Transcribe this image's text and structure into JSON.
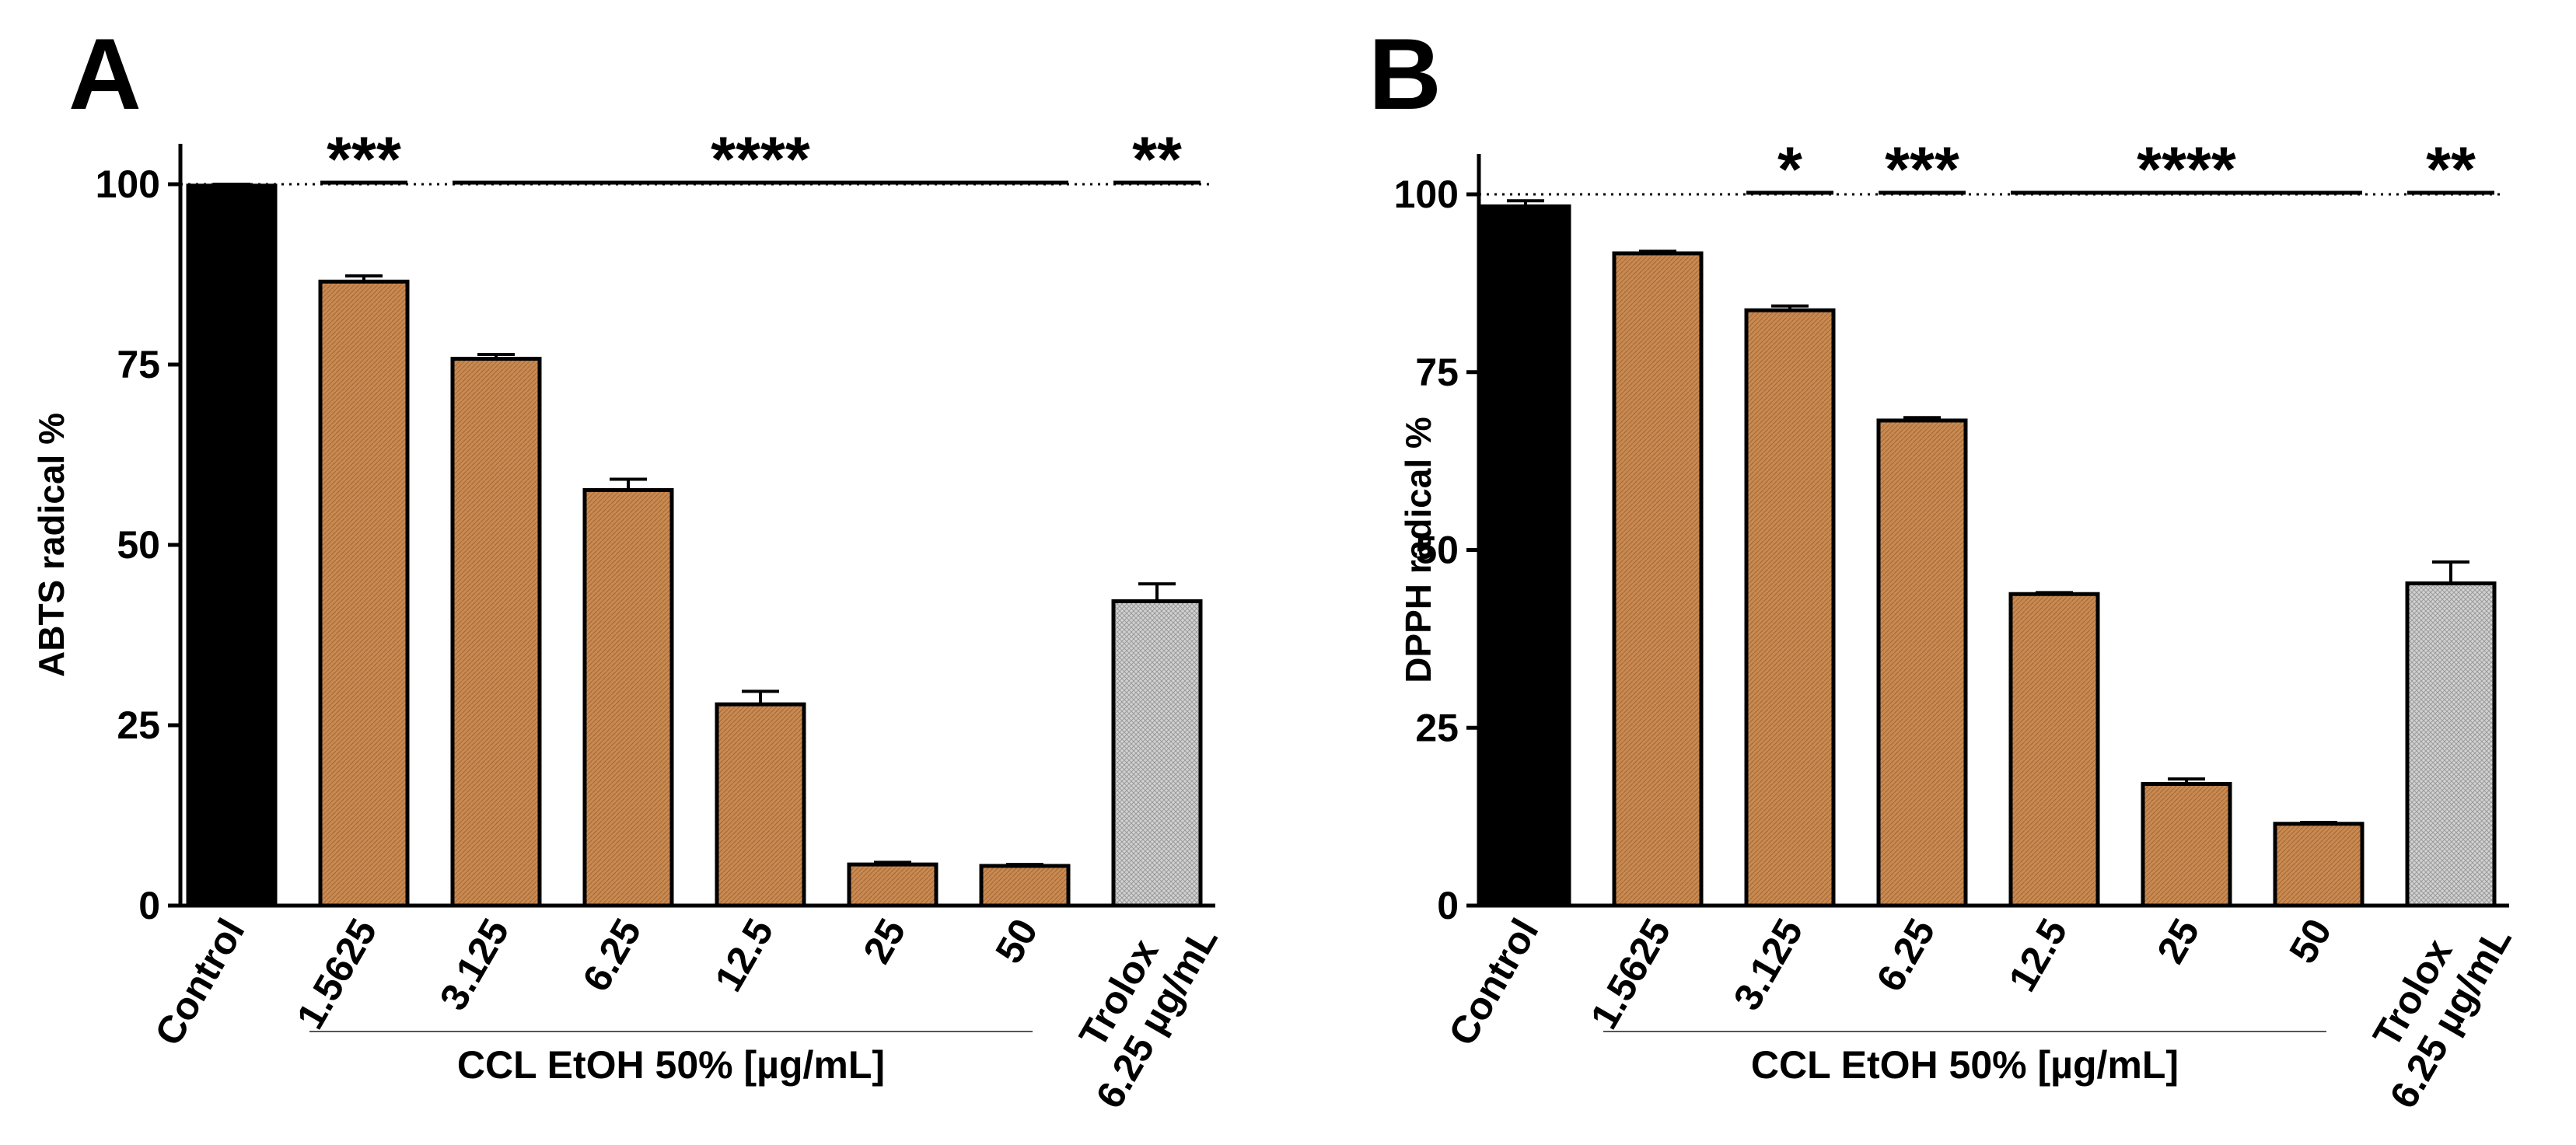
{
  "chart_data": [
    {
      "type": "bar",
      "panel": "A",
      "ylabel": "ABTS radical %",
      "ylim": [
        0,
        100
      ],
      "yticks": [
        "0",
        "25",
        "50",
        "75",
        "100"
      ],
      "reference_line": 100,
      "categories": [
        "Control",
        "1.5625",
        "3.125",
        "6.25",
        "12.5",
        "25",
        "50",
        "Trolox|6.25 µg/mL"
      ],
      "values": [
        99.8,
        86.5,
        75.8,
        57.6,
        27.9,
        5.7,
        5.5,
        42.2
      ],
      "errors": [
        0.2,
        0.8,
        0.6,
        1.5,
        1.8,
        0.3,
        0.2,
        2.4
      ],
      "colors": [
        "#000000",
        "#c8864e",
        "#c8864e",
        "#c8864e",
        "#c8864e",
        "#c8864e",
        "#c8864e",
        "#c8c8c8"
      ],
      "group_label": "CCL EtOH 50% [µg/mL]",
      "group_range": [
        1,
        6
      ],
      "significance": [
        {
          "label": "***",
          "from": 1,
          "to": 1
        },
        {
          "label": "****",
          "from": 2,
          "to": 6
        },
        {
          "label": "**",
          "from": 7,
          "to": 7
        }
      ]
    },
    {
      "type": "bar",
      "panel": "B",
      "ylabel": "DPPH radical %",
      "ylim": [
        0,
        100
      ],
      "yticks": [
        "0",
        "25",
        "50",
        "75",
        "100"
      ],
      "reference_line": 100,
      "categories": [
        "Control",
        "1.5625",
        "3.125",
        "6.25",
        "12.5",
        "25",
        "50",
        "Trolox|6.25 µg/mL"
      ],
      "values": [
        98.3,
        91.7,
        83.7,
        68.2,
        43.8,
        17.1,
        11.5,
        45.3
      ],
      "errors": [
        0.8,
        0.3,
        0.6,
        0.4,
        0.2,
        0.7,
        0.2,
        3.0
      ],
      "colors": [
        "#000000",
        "#c8864e",
        "#c8864e",
        "#c8864e",
        "#c8864e",
        "#c8864e",
        "#c8864e",
        "#c8c8c8"
      ],
      "group_label": "CCL EtOH 50% [µg/mL]",
      "group_range": [
        1,
        6
      ],
      "significance": [
        {
          "label": "*",
          "from": 2,
          "to": 2
        },
        {
          "label": "***",
          "from": 3,
          "to": 3
        },
        {
          "label": "****",
          "from": 4,
          "to": 6
        },
        {
          "label": "**",
          "from": 7,
          "to": 7
        }
      ]
    }
  ]
}
